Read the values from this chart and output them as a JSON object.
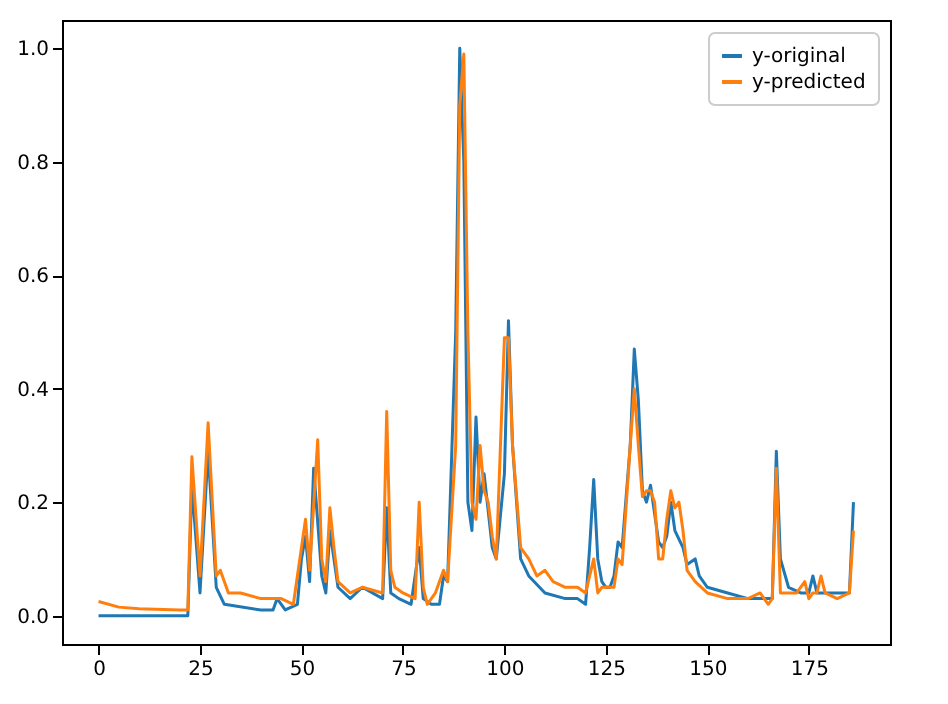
{
  "chart_data": {
    "type": "line",
    "xlim": [
      -9,
      195
    ],
    "ylim": [
      -0.05,
      1.05
    ],
    "xticks": [
      0,
      25,
      50,
      75,
      100,
      125,
      150,
      175
    ],
    "yticks": [
      {
        "value": 0,
        "label": "0.0"
      },
      {
        "value": 0.2,
        "label": "0.2"
      },
      {
        "value": 0.4,
        "label": "0.4"
      },
      {
        "value": 0.6,
        "label": "0.6"
      },
      {
        "value": 0.8,
        "label": "0.8"
      },
      {
        "value": 1,
        "label": "1.0"
      }
    ],
    "legend": "top right",
    "grid": false,
    "series": [
      {
        "name": "y-original",
        "color": "#1f77b4",
        "x": [
          0,
          22,
          23,
          25,
          27,
          29,
          31,
          40,
          43,
          44,
          46,
          49,
          50,
          51,
          52,
          53,
          55,
          56,
          57,
          59,
          62,
          65,
          70,
          71,
          72,
          74,
          77,
          79,
          80,
          82,
          84,
          85,
          86,
          88,
          89,
          90,
          91,
          92,
          93,
          94,
          95,
          97,
          98,
          100,
          101,
          102,
          104,
          106,
          110,
          115,
          118,
          120,
          121,
          122,
          123,
          124,
          125,
          126,
          127,
          128,
          129,
          131,
          132,
          133,
          134,
          135,
          136,
          138,
          139,
          140,
          141,
          142,
          144,
          145,
          147,
          148,
          150,
          155,
          160,
          164,
          166,
          167,
          168,
          170,
          173,
          175,
          176,
          177,
          180,
          182,
          185,
          186
        ],
        "values": [
          0.0,
          0.0,
          0.23,
          0.04,
          0.29,
          0.05,
          0.02,
          0.01,
          0.01,
          0.03,
          0.01,
          0.02,
          0.1,
          0.14,
          0.06,
          0.26,
          0.07,
          0.04,
          0.15,
          0.05,
          0.03,
          0.05,
          0.03,
          0.19,
          0.04,
          0.03,
          0.02,
          0.12,
          0.03,
          0.02,
          0.02,
          0.07,
          0.06,
          0.5,
          1.0,
          0.8,
          0.2,
          0.15,
          0.35,
          0.2,
          0.25,
          0.12,
          0.1,
          0.25,
          0.52,
          0.3,
          0.1,
          0.07,
          0.04,
          0.03,
          0.03,
          0.02,
          0.12,
          0.24,
          0.1,
          0.06,
          0.05,
          0.05,
          0.07,
          0.13,
          0.12,
          0.3,
          0.47,
          0.38,
          0.22,
          0.2,
          0.23,
          0.13,
          0.12,
          0.14,
          0.2,
          0.15,
          0.12,
          0.09,
          0.1,
          0.07,
          0.05,
          0.04,
          0.03,
          0.03,
          0.03,
          0.29,
          0.1,
          0.05,
          0.04,
          0.04,
          0.07,
          0.04,
          0.04,
          0.04,
          0.04,
          0.2
        ]
      },
      {
        "name": "y-predicted",
        "color": "#ff7f0e",
        "x": [
          0,
          5,
          10,
          20,
          22,
          23,
          25,
          27,
          29,
          30,
          32,
          35,
          40,
          45,
          48,
          50,
          51,
          52,
          54,
          55,
          56,
          57,
          58,
          59,
          62,
          65,
          70,
          71,
          72,
          73,
          75,
          78,
          79,
          80,
          81,
          83,
          85,
          86,
          88,
          89,
          90,
          91,
          92,
          93,
          94,
          95,
          96,
          97,
          98,
          100,
          101,
          102,
          104,
          106,
          108,
          110,
          112,
          115,
          118,
          120,
          121,
          122,
          123,
          124,
          125,
          127,
          128,
          129,
          131,
          132,
          133,
          134,
          135,
          136,
          137,
          138,
          139,
          140,
          141,
          142,
          143,
          144,
          145,
          147,
          150,
          155,
          160,
          163,
          165,
          166,
          167,
          168,
          170,
          172,
          174,
          175,
          176,
          177,
          178,
          179,
          182,
          185,
          186
        ],
        "values": [
          0.025,
          0.015,
          0.012,
          0.01,
          0.01,
          0.28,
          0.07,
          0.34,
          0.07,
          0.08,
          0.04,
          0.04,
          0.03,
          0.03,
          0.02,
          0.12,
          0.17,
          0.08,
          0.31,
          0.1,
          0.06,
          0.19,
          0.12,
          0.06,
          0.04,
          0.05,
          0.04,
          0.36,
          0.08,
          0.05,
          0.04,
          0.03,
          0.2,
          0.05,
          0.02,
          0.04,
          0.08,
          0.06,
          0.3,
          0.9,
          0.99,
          0.5,
          0.2,
          0.17,
          0.3,
          0.22,
          0.2,
          0.14,
          0.1,
          0.49,
          0.49,
          0.3,
          0.12,
          0.1,
          0.07,
          0.08,
          0.06,
          0.05,
          0.05,
          0.04,
          0.07,
          0.1,
          0.04,
          0.05,
          0.05,
          0.05,
          0.1,
          0.09,
          0.3,
          0.4,
          0.3,
          0.21,
          0.22,
          0.22,
          0.2,
          0.1,
          0.1,
          0.17,
          0.22,
          0.19,
          0.2,
          0.15,
          0.08,
          0.06,
          0.04,
          0.03,
          0.03,
          0.04,
          0.02,
          0.03,
          0.26,
          0.04,
          0.04,
          0.04,
          0.06,
          0.03,
          0.04,
          0.04,
          0.07,
          0.04,
          0.03,
          0.04,
          0.15
        ]
      }
    ]
  }
}
